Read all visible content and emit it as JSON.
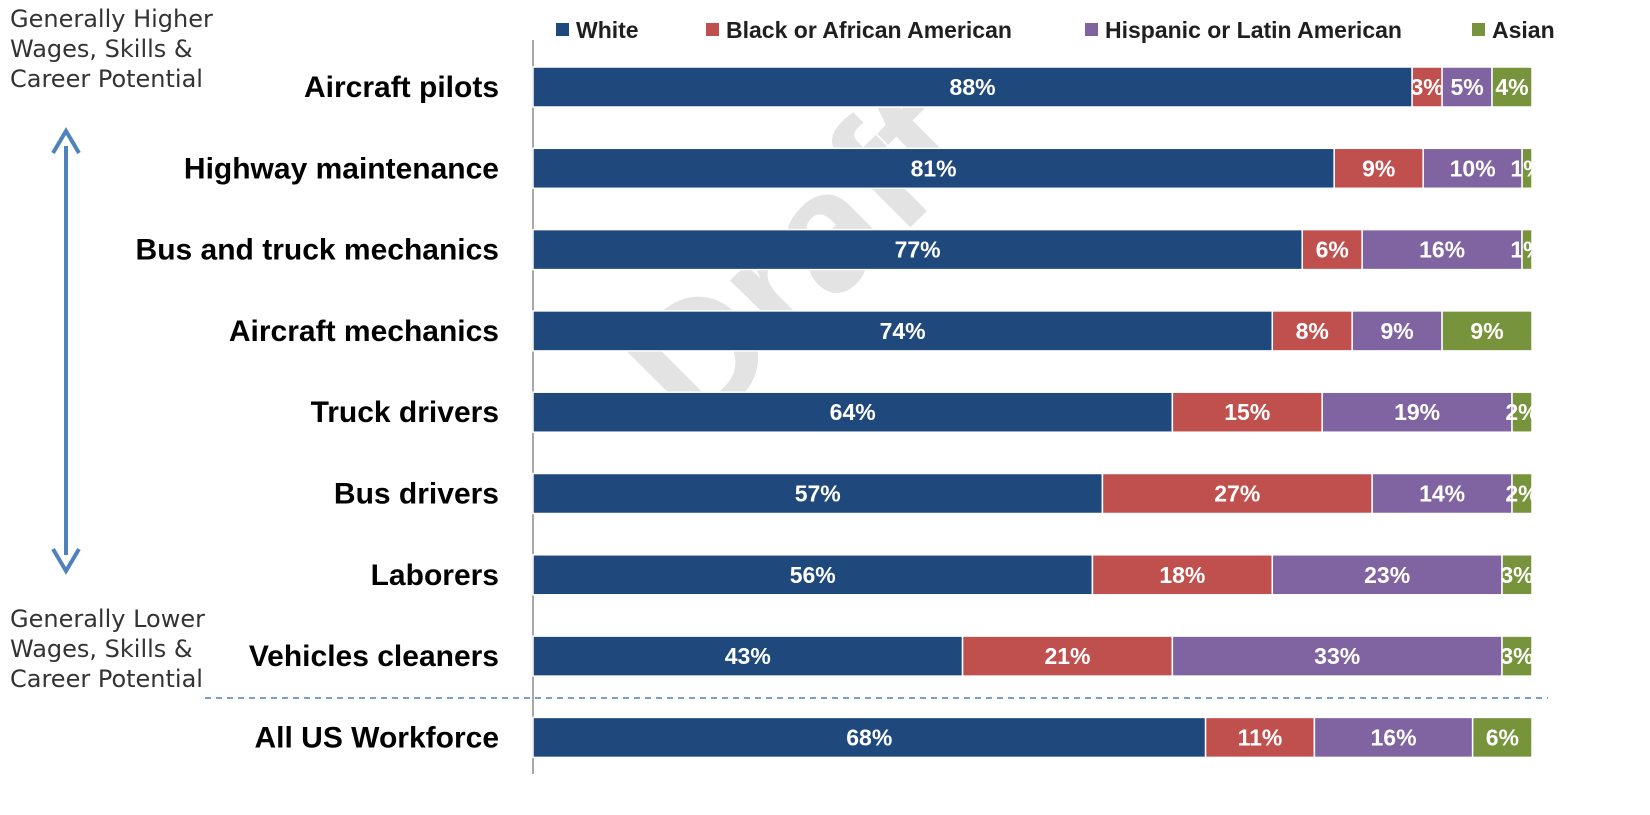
{
  "side_notes": {
    "top": "Generally Higher\nWages, Skills &\nCareer Potential",
    "bottom": "Generally Lower\nWages, Skills &\nCareer Potential"
  },
  "watermark": "Draft",
  "colors": {
    "white": "#1F497D",
    "black": "#C0504D",
    "hispanic": "#8064A2",
    "asian": "#77933C",
    "arrow": "#4F81BD",
    "divider": "#4F81BD"
  },
  "chart_data": {
    "type": "bar",
    "stacked": true,
    "orientation": "horizontal",
    "legend_position": "top",
    "categories": [
      "Aircraft pilots",
      "Highway maintenance",
      "Bus and truck mechanics",
      "Aircraft mechanics",
      "Truck drivers",
      "Bus drivers",
      "Laborers",
      "Vehicles cleaners",
      "All US Workforce"
    ],
    "series": [
      {
        "name": "White",
        "color_key": "white",
        "values": [
          88,
          81,
          77,
          74,
          64,
          57,
          56,
          43,
          68
        ],
        "labels": [
          "88%",
          "81%",
          "77%",
          "74%",
          "64%",
          "57%",
          "56%",
          "43%",
          "68%"
        ]
      },
      {
        "name": "Black or African American",
        "color_key": "black",
        "values": [
          3,
          9,
          6,
          8,
          15,
          27,
          18,
          21,
          11
        ],
        "labels": [
          "3%",
          "9%",
          "6%",
          "8%",
          "15%",
          "27%",
          "18%",
          "21%",
          "11%"
        ]
      },
      {
        "name": "Hispanic or Latin American",
        "color_key": "hispanic",
        "values": [
          5,
          10,
          16,
          9,
          19,
          14,
          23,
          33,
          16
        ],
        "labels": [
          "5%",
          "10%",
          "16%",
          "9%",
          "19%",
          "14%",
          "23%",
          "33%",
          "16%"
        ]
      },
      {
        "name": "Asian",
        "color_key": "asian",
        "values": [
          4,
          1,
          1,
          9,
          2,
          2,
          3,
          3,
          6
        ],
        "labels": [
          "4%",
          "1%",
          "1%",
          "9%",
          "2%",
          "2%",
          "3%",
          "3%",
          "6%"
        ]
      }
    ]
  }
}
